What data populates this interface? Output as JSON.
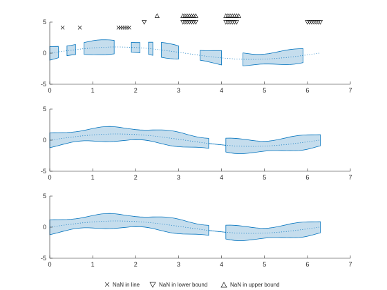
{
  "chart_data": {
    "type": "area",
    "x_ticks": [
      "0",
      "1",
      "2",
      "3",
      "4",
      "5",
      "6",
      "7"
    ],
    "y_ticks": [
      "-5",
      "0",
      "5"
    ],
    "xlim": [
      0,
      7
    ],
    "ylim": [
      -5,
      5
    ],
    "grid": false,
    "legend_position": "bottom",
    "legend": [
      {
        "marker": "x",
        "label": "NaN in line"
      },
      {
        "marker": "triangle-down",
        "label": "NaN in lower bound"
      },
      {
        "marker": "triangle-up",
        "label": "NaN in upper bound"
      }
    ],
    "band_half_width": 1,
    "line_x": [
      0,
      0.1,
      0.2,
      0.3,
      0.4,
      0.5,
      0.6,
      0.7,
      0.8,
      0.9,
      1.0,
      1.1,
      1.2,
      1.3,
      1.4,
      1.5,
      1.6,
      1.7,
      1.8,
      1.9,
      2.0,
      2.1,
      2.2,
      2.3,
      2.4,
      2.5,
      2.6,
      2.7,
      2.8,
      2.9,
      3.0,
      3.1,
      3.2,
      3.3,
      3.4,
      3.5,
      3.6,
      3.7,
      3.8,
      3.9,
      4.0,
      4.1,
      4.2,
      4.3,
      4.4,
      4.5,
      4.6,
      4.7,
      4.8,
      4.9,
      5.0,
      5.1,
      5.2,
      5.3,
      5.4,
      5.5,
      5.6,
      5.7,
      5.8,
      5.9,
      6.0,
      6.1,
      6.2,
      6.3
    ],
    "line_y": [
      0,
      0.1,
      0.2,
      0.3,
      0.39,
      0.48,
      0.56,
      0.64,
      0.72,
      0.78,
      0.84,
      0.89,
      0.93,
      0.96,
      0.99,
      1.0,
      1.0,
      0.99,
      0.97,
      0.95,
      0.91,
      0.86,
      0.81,
      0.75,
      0.68,
      0.6,
      0.52,
      0.43,
      0.33,
      0.24,
      0.14,
      0.04,
      -0.06,
      -0.16,
      -0.26,
      -0.35,
      -0.44,
      -0.53,
      -0.61,
      -0.69,
      -0.76,
      -0.82,
      -0.87,
      -0.92,
      -0.95,
      -0.98,
      -0.99,
      -1.0,
      -1.0,
      -0.98,
      -0.96,
      -0.93,
      -0.88,
      -0.83,
      -0.77,
      -0.71,
      -0.63,
      -0.55,
      -0.46,
      -0.37,
      -0.28,
      -0.18,
      -0.08,
      0.02
    ],
    "panels": [
      {
        "name": "top",
        "nan_in_line_x": [
          0.3,
          0.7,
          1.6,
          1.65,
          1.7,
          1.75,
          1.8,
          1.85
        ],
        "nan_in_lower_x": [
          2.2,
          3.1,
          3.15,
          3.2,
          3.25,
          3.3,
          3.35,
          3.4,
          4.1,
          4.15,
          4.2,
          4.25,
          4.3,
          4.35,
          6.0,
          6.05,
          6.1,
          6.15,
          6.2,
          6.25,
          6.3
        ],
        "nan_in_upper_x": [
          2.5,
          3.1,
          3.15,
          3.2,
          3.25,
          3.3,
          3.35,
          3.4,
          4.1,
          4.15,
          4.2,
          4.25,
          4.3,
          4.35,
          4.4
        ]
      },
      {
        "name": "middle",
        "band_gap": [
          3.7,
          4.1
        ]
      },
      {
        "name": "bottom",
        "band_gap": [
          3.7,
          4.1
        ]
      }
    ]
  }
}
